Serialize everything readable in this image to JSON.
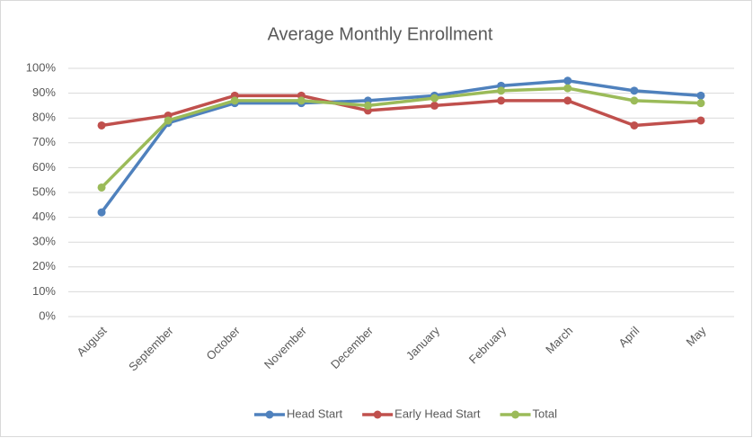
{
  "chart_data": {
    "type": "line",
    "title": "Average Monthly Enrollment",
    "categories": [
      "August",
      "September",
      "October",
      "November",
      "December",
      "January",
      "February",
      "March",
      "April",
      "May"
    ],
    "series": [
      {
        "name": "Head Start",
        "color": "#4f81bd",
        "values": [
          42,
          78,
          86,
          86,
          87,
          89,
          93,
          95,
          91,
          89
        ]
      },
      {
        "name": "Early Head Start",
        "color": "#c0504d",
        "values": [
          77,
          81,
          89,
          89,
          83,
          85,
          87,
          87,
          77,
          79
        ]
      },
      {
        "name": "Total",
        "color": "#9bbb59",
        "values": [
          52,
          79,
          87,
          87,
          85,
          88,
          91,
          92,
          87,
          86
        ]
      }
    ],
    "ylim": [
      0,
      100
    ],
    "yticks": [
      {
        "value": 0,
        "label": "0%"
      },
      {
        "value": 10,
        "label": "10%"
      },
      {
        "value": 20,
        "label": "20%"
      },
      {
        "value": 30,
        "label": "30%"
      },
      {
        "value": 40,
        "label": "40%"
      },
      {
        "value": 50,
        "label": "50%"
      },
      {
        "value": 60,
        "label": "60%"
      },
      {
        "value": 70,
        "label": "70%"
      },
      {
        "value": 80,
        "label": "80%"
      },
      {
        "value": 90,
        "label": "90%"
      },
      {
        "value": 100,
        "label": "100%"
      }
    ],
    "grid": true,
    "legend": "bottom"
  }
}
